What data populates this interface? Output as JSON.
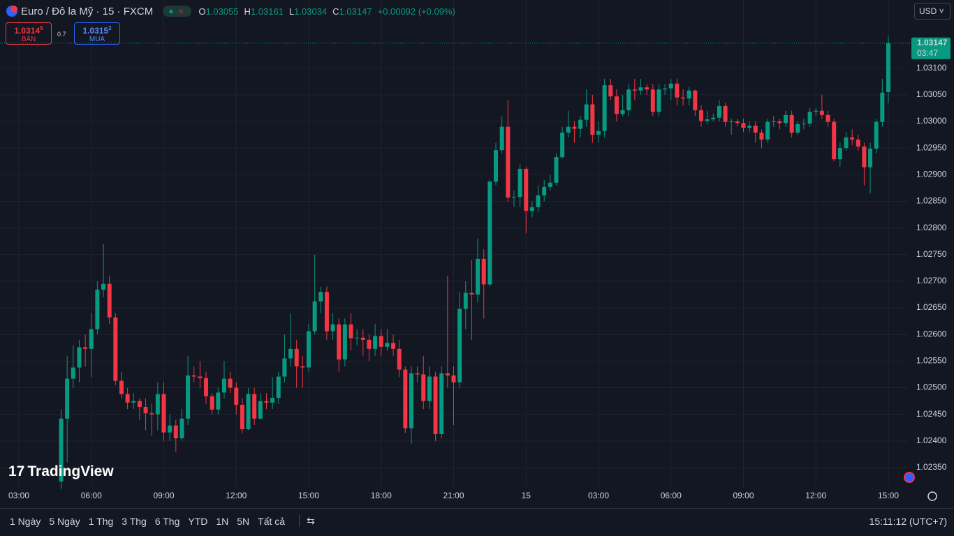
{
  "header": {
    "symbol": "Euro / Đô la Mỹ · 15 · FXCM",
    "o_label": "O",
    "o": "1.03055",
    "h_label": "H",
    "h": "1.03161",
    "l_label": "L",
    "l": "1.03034",
    "c_label": "C",
    "c": "1.03147",
    "change": "+0.00092 (+0.09%)",
    "currency": "USD"
  },
  "trade": {
    "sell_main": "1.0314",
    "sell_frac": "5",
    "sell_label": "BÁN",
    "spread": "0.7",
    "buy_main": "1.0315",
    "buy_frac": "2",
    "buy_label": "MUA"
  },
  "countdown": "03:47",
  "logo": "TradingView",
  "footer": {
    "ranges": [
      "1 Ngày",
      "5 Ngày",
      "1 Thg",
      "3 Thg",
      "6 Thg",
      "YTD",
      "1N",
      "5N",
      "Tất cả"
    ],
    "clock": "15:11:12 (UTC+7)"
  },
  "chart_data": {
    "type": "candlestick",
    "up_color": "#089981",
    "down_color": "#f23645",
    "grid": true,
    "ylim": [
      1.02274,
      1.03228
    ],
    "yticks": [
      {
        "value": 1.0235,
        "label": "1.02350"
      },
      {
        "value": 1.024,
        "label": "1.02400"
      },
      {
        "value": 1.0245,
        "label": "1.02450"
      },
      {
        "value": 1.025,
        "label": "1.02500"
      },
      {
        "value": 1.0255,
        "label": "1.02550"
      },
      {
        "value": 1.026,
        "label": "1.02600"
      },
      {
        "value": 1.0265,
        "label": "1.02650"
      },
      {
        "value": 1.027,
        "label": "1.02700"
      },
      {
        "value": 1.0275,
        "label": "1.02750"
      },
      {
        "value": 1.028,
        "label": "1.02800"
      },
      {
        "value": 1.0285,
        "label": "1.02850"
      },
      {
        "value": 1.029,
        "label": "1.02900"
      },
      {
        "value": 1.0295,
        "label": "1.02950"
      },
      {
        "value": 1.03,
        "label": "1.03000"
      },
      {
        "value": 1.0305,
        "label": "1.03050"
      },
      {
        "value": 1.031,
        "label": "1.03100"
      }
    ],
    "categories": [
      "03:00",
      null,
      null,
      null,
      null,
      null,
      null,
      null,
      null,
      null,
      null,
      null,
      "06:00",
      null,
      null,
      null,
      null,
      null,
      null,
      null,
      null,
      null,
      null,
      null,
      "09:00",
      null,
      null,
      null,
      null,
      null,
      null,
      null,
      null,
      null,
      null,
      null,
      "12:00",
      null,
      null,
      null,
      null,
      null,
      null,
      null,
      null,
      null,
      null,
      null,
      "15:00",
      null,
      null,
      null,
      null,
      null,
      null,
      null,
      null,
      null,
      null,
      null,
      "18:00",
      null,
      null,
      null,
      null,
      null,
      null,
      null,
      null,
      null,
      null,
      null,
      "21:00",
      null,
      null,
      null,
      null,
      null,
      null,
      null,
      null,
      null,
      null,
      null,
      "15",
      null,
      null,
      null,
      null,
      null,
      null,
      null,
      null,
      null,
      null,
      null,
      "03:00",
      null,
      null,
      null,
      null,
      null,
      null,
      null,
      null,
      null,
      null,
      null,
      "06:00",
      null,
      null,
      null,
      null,
      null,
      null,
      null,
      null,
      null,
      null,
      null,
      "09:00",
      null,
      null,
      null,
      null,
      null,
      null,
      null,
      null,
      null,
      null,
      null,
      "12:00",
      null,
      null,
      null,
      null,
      null,
      null,
      null,
      null,
      null,
      null,
      null,
      "15:00"
    ],
    "open": [
      null,
      null,
      null,
      null,
      null,
      null,
      null,
      1.02324,
      1.02442,
      1.02517,
      1.02538,
      1.02576,
      1.02573,
      1.0261,
      1.02684,
      1.02695,
      1.02632,
      1.02513,
      1.02488,
      1.02472,
      1.02475,
      1.02464,
      1.02452,
      1.0245,
      1.02488,
      1.02416,
      1.02429,
      1.02405,
      1.02442,
      1.02523,
      1.02521,
      1.02518,
      1.02484,
      1.02459,
      1.02491,
      1.02517,
      1.025,
      1.02468,
      1.02422,
      1.02488,
      1.02442,
      1.02475,
      1.02472,
      1.02481,
      1.02521,
      1.02555,
      1.02573,
      1.0254,
      1.02538,
      1.02606,
      1.02662,
      1.0268,
      1.02606,
      1.02619,
      1.02553,
      1.02619,
      1.02593,
      1.02594,
      1.0259,
      1.02573,
      1.02597,
      1.02577,
      1.02584,
      1.02573,
      1.02534,
      1.02424,
      1.02527,
      1.02525,
      1.02475,
      1.02521,
      1.02413,
      1.02527,
      1.02523,
      1.0251,
      1.02648,
      1.02678,
      1.02675,
      1.02742,
      1.02694,
      1.02887,
      1.02946,
      1.0299,
      1.02857,
      1.02858,
      1.02911,
      1.02832,
      1.02839,
      1.02861,
      1.02877,
      1.02885,
      1.02933,
      1.02979,
      1.0299,
      1.02986,
      1.03003,
      1.03032,
      1.02975,
      1.02982,
      1.03068,
      1.03047,
      1.03014,
      1.03021,
      1.0306,
      1.03058,
      1.03064,
      1.0306,
      1.03018,
      1.0306,
      1.03062,
      1.03071,
      1.03045,
      1.03043,
      1.03058,
      1.03021,
      1.03001,
      1.03004,
      1.03007,
      1.03029,
      1.02999,
      1.03,
      1.02997,
      1.02988,
      1.02992,
      1.02979,
      1.02966,
      1.02999,
      1.03,
      1.02997,
      1.03012,
      1.02979,
      1.02995,
      1.02996,
      1.03018,
      1.0302,
      1.03012,
      1.02999,
      1.02929,
      1.0295,
      1.0297,
      1.02966,
      1.02953,
      1.02914,
      1.02949,
      1.02999,
      1.03055
    ],
    "high": [
      null,
      null,
      null,
      null,
      null,
      null,
      null,
      1.0246,
      1.0256,
      1.0258,
      1.0259,
      1.026,
      1.0264,
      1.027,
      1.0277,
      1.0271,
      1.0264,
      1.0253,
      1.025,
      1.0249,
      1.0248,
      1.0248,
      1.0247,
      1.0251,
      1.0251,
      1.0245,
      1.0244,
      1.0246,
      1.0256,
      1.0254,
      1.0255,
      1.0253,
      1.0249,
      1.025,
      1.0255,
      1.0253,
      1.0251,
      1.0248,
      1.025,
      1.025,
      1.0249,
      1.0249,
      1.0252,
      1.0253,
      1.026,
      1.0264,
      1.0259,
      1.0256,
      1.0262,
      1.0275,
      1.0269,
      1.0269,
      1.0264,
      1.0263,
      1.0263,
      1.0264,
      1.0261,
      1.0261,
      1.026,
      1.0262,
      1.0261,
      1.0261,
      1.026,
      1.0259,
      1.0254,
      1.0254,
      1.0254,
      1.0256,
      1.0254,
      1.0253,
      1.0254,
      1.0271,
      1.0254,
      1.0268,
      1.027,
      1.0274,
      1.0278,
      1.0276,
      1.0289,
      1.0296,
      1.0301,
      1.0304,
      1.0287,
      1.0292,
      1.02915,
      1.0285,
      1.0288,
      1.0289,
      1.029,
      1.0294,
      1.0299,
      1.0302,
      1.03,
      1.0301,
      1.0306,
      1.0305,
      1.03,
      1.0308,
      1.0308,
      1.0306,
      1.0305,
      1.0307,
      1.0308,
      1.0308,
      1.0307,
      1.0307,
      1.0307,
      1.0307,
      1.0308,
      1.0308,
      1.0306,
      1.03065,
      1.0306,
      1.0303,
      1.0302,
      1.03015,
      1.0304,
      1.03035,
      1.03005,
      1.03005,
      1.03005,
      1.03,
      1.03,
      1.02985,
      1.03005,
      1.0301,
      1.03005,
      1.0302,
      1.0302,
      1.03,
      1.03005,
      1.03025,
      1.03025,
      1.0305,
      1.0302,
      1.03005,
      1.0296,
      1.0298,
      1.02985,
      1.02975,
      1.0296,
      1.0296,
      1.03005,
      1.0308,
      1.03161
    ],
    "low": [
      null,
      null,
      null,
      null,
      null,
      null,
      null,
      1.0231,
      1.0236,
      1.025,
      1.0251,
      1.0254,
      1.0252,
      1.026,
      1.0267,
      1.0262,
      1.02505,
      1.0248,
      1.0246,
      1.0246,
      1.0244,
      1.0242,
      1.0241,
      1.0242,
      1.024,
      1.024,
      1.0238,
      1.024,
      1.0243,
      1.0251,
      1.025,
      1.0247,
      1.0245,
      1.0245,
      1.0248,
      1.0249,
      1.0245,
      1.02415,
      1.0242,
      1.0243,
      1.0244,
      1.0246,
      1.0246,
      1.0247,
      1.0251,
      1.0254,
      1.025,
      1.025,
      1.0253,
      1.026,
      1.0264,
      1.0259,
      1.0259,
      1.0253,
      1.0254,
      1.0257,
      1.0258,
      1.0256,
      1.0255,
      1.0256,
      1.0256,
      1.0257,
      1.0256,
      1.0252,
      1.02415,
      1.02395,
      1.0251,
      1.0246,
      1.0246,
      1.024,
      1.02405,
      1.025,
      1.0243,
      1.025,
      1.0261,
      1.0259,
      1.0266,
      1.0263,
      1.0269,
      1.0288,
      1.0294,
      1.0285,
      1.0284,
      1.0284,
      1.0279,
      1.0282,
      1.0283,
      1.0285,
      1.0287,
      1.0288,
      1.0293,
      1.0297,
      1.0296,
      1.0297,
      1.0299,
      1.0296,
      1.0296,
      1.0297,
      1.0304,
      1.03,
      1.0301,
      1.0301,
      1.0304,
      1.0305,
      1.0305,
      1.0301,
      1.0301,
      1.0305,
      1.0304,
      1.0303,
      1.0303,
      1.0303,
      1.0301,
      1.0299,
      1.02995,
      1.03,
      1.03,
      1.0299,
      1.02975,
      1.0299,
      1.0298,
      1.0298,
      1.0296,
      1.0295,
      1.0296,
      1.0299,
      1.02985,
      1.0299,
      1.0297,
      1.02975,
      1.02985,
      1.0299,
      1.0301,
      1.03005,
      1.0299,
      1.02925,
      1.02915,
      1.02945,
      1.02955,
      1.02945,
      1.0288,
      1.02865,
      1.0294,
      1.0299,
      1.03034
    ],
    "close": [
      null,
      null,
      null,
      null,
      null,
      null,
      null,
      1.02442,
      1.02517,
      1.02538,
      1.02576,
      1.02573,
      1.0261,
      1.02684,
      1.02695,
      1.02632,
      1.02513,
      1.02488,
      1.02472,
      1.02475,
      1.02464,
      1.02452,
      1.0245,
      1.02488,
      1.02416,
      1.02429,
      1.02405,
      1.02442,
      1.02523,
      1.02521,
      1.02518,
      1.02484,
      1.02459,
      1.02491,
      1.02517,
      1.025,
      1.02468,
      1.02422,
      1.02488,
      1.02442,
      1.02475,
      1.02472,
      1.02481,
      1.02521,
      1.02555,
      1.02573,
      1.0254,
      1.02538,
      1.02606,
      1.02662,
      1.0268,
      1.02606,
      1.02619,
      1.02553,
      1.02619,
      1.02593,
      1.02594,
      1.0259,
      1.02573,
      1.02597,
      1.02577,
      1.02584,
      1.02573,
      1.02534,
      1.02424,
      1.02527,
      1.02525,
      1.02475,
      1.02521,
      1.02413,
      1.02527,
      1.02523,
      1.0251,
      1.02648,
      1.02678,
      1.02675,
      1.02742,
      1.02694,
      1.02887,
      1.02946,
      1.0299,
      1.02857,
      1.02858,
      1.02911,
      1.02832,
      1.02839,
      1.02861,
      1.02877,
      1.02885,
      1.02933,
      1.02979,
      1.0299,
      1.02986,
      1.03003,
      1.03032,
      1.02975,
      1.02982,
      1.03068,
      1.03047,
      1.03014,
      1.03021,
      1.0306,
      1.03058,
      1.03064,
      1.0306,
      1.03018,
      1.0306,
      1.03062,
      1.03071,
      1.03045,
      1.03043,
      1.03058,
      1.03021,
      1.03001,
      1.03004,
      1.03007,
      1.03029,
      1.02999,
      1.03,
      1.02997,
      1.02988,
      1.02992,
      1.02979,
      1.02966,
      1.02999,
      1.03,
      1.02997,
      1.03012,
      1.02979,
      1.02995,
      1.02996,
      1.03018,
      1.0302,
      1.03012,
      1.02999,
      1.02929,
      1.0295,
      1.0297,
      1.02966,
      1.02953,
      1.02914,
      1.02949,
      1.02999,
      1.03054,
      1.03147
    ]
  }
}
